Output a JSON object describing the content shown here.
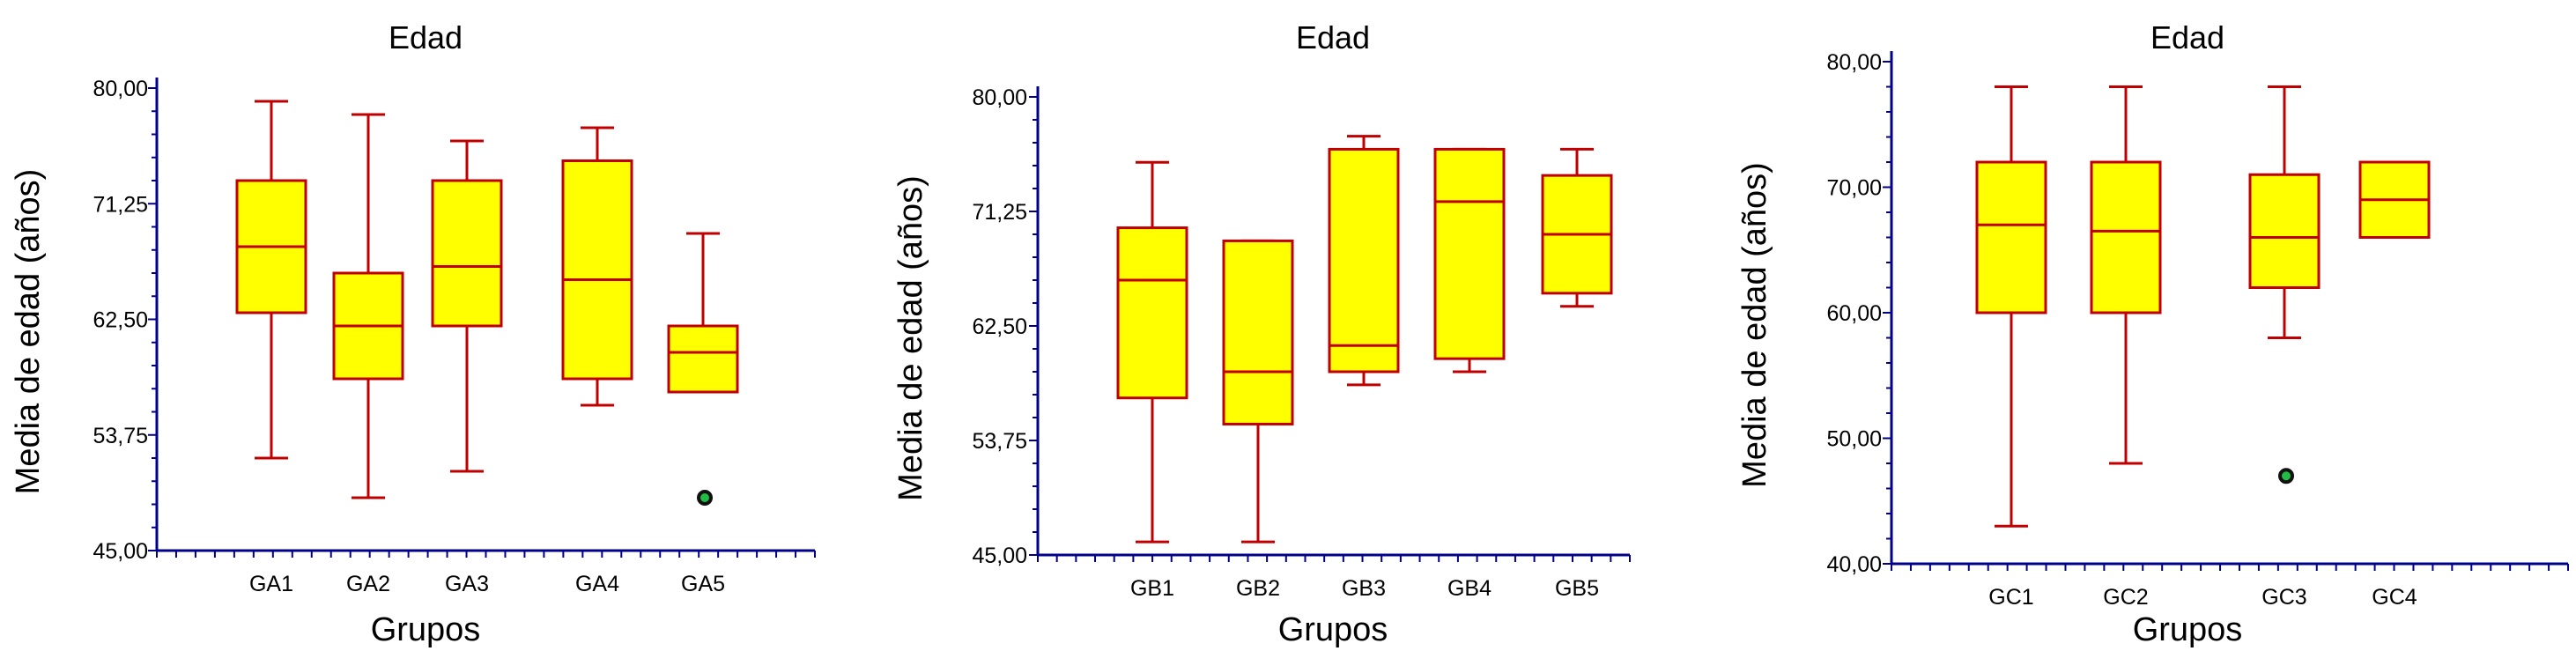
{
  "colors": {
    "box_fill": "#ffff00",
    "box_stroke": "#c00000",
    "axis": "#00008b",
    "outlier_fill": "#22bb44",
    "outlier_stroke": "#111111"
  },
  "chart_data": [
    {
      "type": "boxplot",
      "title": "Edad",
      "xlabel": "Grupos",
      "ylabel": "Media de edad (años)",
      "ylim": [
        45,
        80
      ],
      "yticks": [
        "45,00",
        "53,75",
        "62,50",
        "71,25",
        "80,00"
      ],
      "ytick_values": [
        45,
        53.75,
        62.5,
        71.25,
        80
      ],
      "categories": [
        "GA1",
        "GA2",
        "GA3",
        "GA4",
        "GA5"
      ],
      "boxes": [
        {
          "min": 52,
          "q1": 63,
          "median": 68,
          "q3": 73,
          "max": 79,
          "outliers": []
        },
        {
          "min": 49,
          "q1": 58,
          "median": 62,
          "q3": 66,
          "max": 78,
          "outliers": []
        },
        {
          "min": 51,
          "q1": 62,
          "median": 66.5,
          "q3": 73,
          "max": 76,
          "outliers": []
        },
        {
          "min": 56,
          "q1": 58,
          "median": 65.5,
          "q3": 74.5,
          "max": 77,
          "outliers": []
        },
        {
          "min": 57,
          "q1": 57,
          "median": 60,
          "q3": 62,
          "max": 69,
          "outliers": [
            49
          ]
        }
      ]
    },
    {
      "type": "boxplot",
      "title": "Edad",
      "xlabel": "Grupos",
      "ylabel": "Media de edad (años)",
      "ylim": [
        45,
        80
      ],
      "yticks": [
        "45,00",
        "53,75",
        "62,50",
        "71,25",
        "80,00"
      ],
      "ytick_values": [
        45,
        53.75,
        62.5,
        71.25,
        80
      ],
      "categories": [
        "GB1",
        "GB2",
        "GB3",
        "GB4",
        "GB5"
      ],
      "boxes": [
        {
          "min": 46,
          "q1": 57,
          "median": 66,
          "q3": 70,
          "max": 75,
          "outliers": []
        },
        {
          "min": 46,
          "q1": 55,
          "median": 59,
          "q3": 69,
          "max": 69,
          "outliers": []
        },
        {
          "min": 58,
          "q1": 59,
          "median": 61,
          "q3": 76,
          "max": 77,
          "outliers": []
        },
        {
          "min": 59,
          "q1": 60,
          "median": 72,
          "q3": 76,
          "max": 76,
          "outliers": []
        },
        {
          "min": 64,
          "q1": 65,
          "median": 69.5,
          "q3": 74,
          "max": 76,
          "outliers": []
        }
      ]
    },
    {
      "type": "boxplot",
      "title": "Edad",
      "xlabel": "Grupos",
      "ylabel": "Media de edad (años)",
      "ylim": [
        40,
        80
      ],
      "yticks": [
        "40,00",
        "50,00",
        "60,00",
        "70,00",
        "80,00"
      ],
      "ytick_values": [
        40,
        50,
        60,
        70,
        80
      ],
      "categories": [
        "GC1",
        "GC2",
        "GC3",
        "GC4"
      ],
      "boxes": [
        {
          "min": 43,
          "q1": 60,
          "median": 67,
          "q3": 72,
          "max": 78,
          "outliers": []
        },
        {
          "min": 48,
          "q1": 60,
          "median": 66.5,
          "q3": 72,
          "max": 78,
          "outliers": []
        },
        {
          "min": 58,
          "q1": 62,
          "median": 66,
          "q3": 71,
          "max": 78,
          "outliers": [
            47
          ]
        },
        {
          "min": 66,
          "q1": 66,
          "median": 69,
          "q3": 72,
          "max": 72,
          "outliers": []
        }
      ]
    }
  ]
}
